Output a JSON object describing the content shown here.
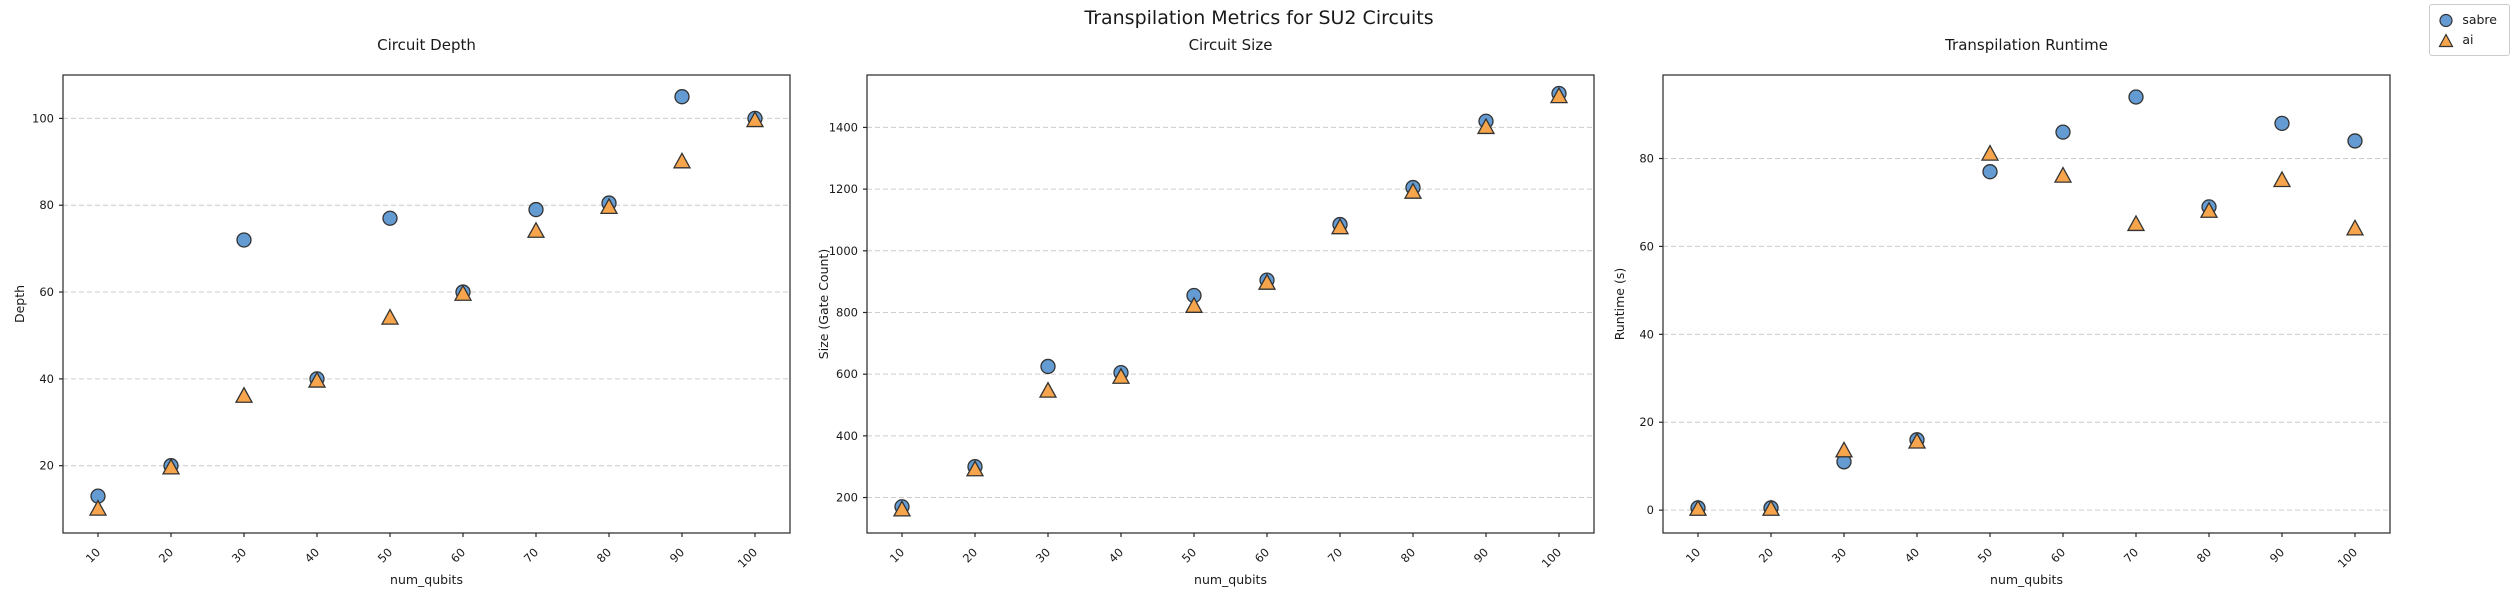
{
  "figure_title": "Transpilation Metrics for SU2 Circuits",
  "legend": {
    "position": "figure-top-right",
    "items": [
      {
        "label": "sabre",
        "marker": "circle-marker-icon"
      },
      {
        "label": "ai",
        "marker": "triangle-marker-icon"
      }
    ]
  },
  "style": {
    "sabre_fill": "#649bd2",
    "ai_fill": "#f7a54c",
    "marker_edge": "#333333",
    "grid_color": "#cccccc",
    "spine_color": "#262626"
  },
  "chart_data": [
    {
      "type": "scatter",
      "title": "Circuit Depth",
      "xlabel": "num_qubits",
      "ylabel": "Depth",
      "x": [
        10,
        20,
        30,
        40,
        50,
        60,
        70,
        80,
        90,
        100
      ],
      "series": [
        {
          "name": "sabre",
          "marker": "circle",
          "color": "#649bd2",
          "edge": "#333333",
          "values": [
            13,
            20,
            72,
            40,
            77,
            60,
            79,
            80.5,
            105,
            100
          ]
        },
        {
          "name": "ai",
          "marker": "triangle",
          "color": "#f7a54c",
          "edge": "#333333",
          "values": [
            10,
            19.5,
            36,
            39.5,
            54,
            59.5,
            74,
            79.5,
            90,
            99.5
          ]
        }
      ],
      "yticks": [
        20,
        40,
        60,
        80,
        100
      ],
      "ylim": [
        4.5,
        110
      ],
      "grid": "horizontal-dashed",
      "x_tick_rotation": 45
    },
    {
      "type": "scatter",
      "title": "Circuit Size",
      "xlabel": "num_qubits",
      "ylabel": "Size (Gate Count)",
      "x": [
        10,
        20,
        30,
        40,
        50,
        60,
        70,
        80,
        90,
        100
      ],
      "series": [
        {
          "name": "sabre",
          "marker": "circle",
          "color": "#649bd2",
          "edge": "#333333",
          "values": [
            170,
            300,
            625,
            605,
            855,
            905,
            1085,
            1205,
            1420,
            1510
          ]
        },
        {
          "name": "ai",
          "marker": "triangle",
          "color": "#f7a54c",
          "edge": "#333333",
          "values": [
            160,
            290,
            545,
            590,
            820,
            895,
            1075,
            1190,
            1400,
            1500
          ]
        }
      ],
      "yticks": [
        200,
        400,
        600,
        800,
        1000,
        1200,
        1400
      ],
      "ylim": [
        85,
        1570
      ],
      "grid": "horizontal-dashed",
      "x_tick_rotation": 45
    },
    {
      "type": "scatter",
      "title": "Transpilation Runtime",
      "xlabel": "num_qubits",
      "ylabel": "Runtime (s)",
      "x": [
        10,
        20,
        30,
        40,
        50,
        60,
        70,
        80,
        90,
        100
      ],
      "series": [
        {
          "name": "sabre",
          "marker": "circle",
          "color": "#649bd2",
          "edge": "#333333",
          "values": [
            0.5,
            0.5,
            11,
            16,
            77,
            86,
            94,
            69,
            88,
            84
          ]
        },
        {
          "name": "ai",
          "marker": "triangle",
          "color": "#f7a54c",
          "edge": "#333333",
          "values": [
            0.2,
            0.2,
            13.5,
            15.5,
            81,
            76,
            65,
            68,
            75,
            64
          ]
        }
      ],
      "yticks": [
        0,
        20,
        40,
        60,
        80
      ],
      "ylim": [
        -5.2,
        99
      ],
      "grid": "horizontal-dashed",
      "x_tick_rotation": 45
    }
  ]
}
